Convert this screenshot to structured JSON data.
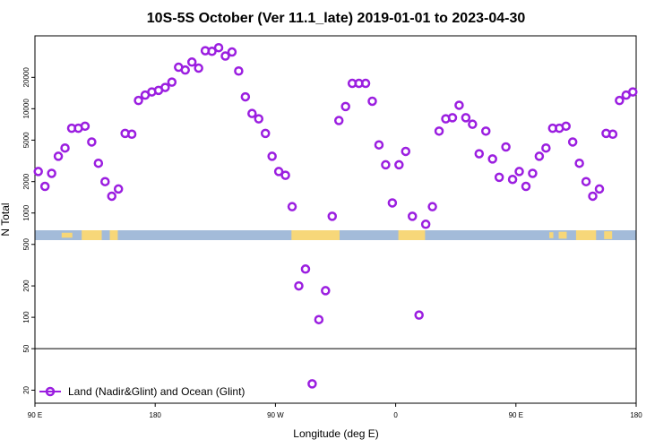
{
  "chart_data": {
    "type": "scatter",
    "title": "10S-5S October (Ver 11.1_late)   2019-01-01 to 2023-04-30",
    "xlabel": "Longitude (deg E)",
    "ylabel": "N Total",
    "x_scale": "longitude, 90 E to 180 via dateline, wrapping once",
    "y_scale": "log",
    "ylim": [
      15,
      50000
    ],
    "x_ticks": [
      {
        "lon": 90,
        "label": "90 E"
      },
      {
        "lon": 180,
        "label": "180"
      },
      {
        "lon": 270,
        "label": "90 W"
      },
      {
        "lon": 360,
        "label": "0"
      },
      {
        "lon": 450,
        "label": "90 E"
      },
      {
        "lon": 540,
        "label": "180"
      }
    ],
    "y_ticks": [
      20,
      50,
      100,
      200,
      500,
      1000,
      2000,
      5000,
      10000,
      20000
    ],
    "reference_line_y": 50,
    "background_band": {
      "description": "land/ocean map strip",
      "ocean_color": "#a3bbd9",
      "land_color": "#f7d779"
    },
    "legend": {
      "position": "bottom-left",
      "label": "Land (Nadir&Glint) and Ocean (Glint)"
    },
    "series": [
      {
        "name": "Land (Nadir&Glint) and Ocean (Glint)",
        "color": "#9b1ee0",
        "points": [
          [
            92.5,
            2500
          ],
          [
            97.5,
            1800
          ],
          [
            102.5,
            2400
          ],
          [
            107.5,
            3500
          ],
          [
            112.5,
            4200
          ],
          [
            117.5,
            6500
          ],
          [
            122.5,
            6500
          ],
          [
            127.5,
            6800
          ],
          [
            132.5,
            4800
          ],
          [
            137.5,
            3000
          ],
          [
            142.5,
            2000
          ],
          [
            147.5,
            1450
          ],
          [
            152.5,
            1700
          ],
          [
            157.5,
            5800
          ],
          [
            162.5,
            5700
          ],
          [
            167.5,
            12000
          ],
          [
            172.5,
            13500
          ],
          [
            177.5,
            14500
          ],
          [
            182.5,
            15000
          ],
          [
            187.5,
            16000
          ],
          [
            192.5,
            18000
          ],
          [
            197.5,
            25000
          ],
          [
            202.5,
            23500
          ],
          [
            207.5,
            28000
          ],
          [
            212.5,
            24500
          ],
          [
            217.5,
            36000
          ],
          [
            222.5,
            35500
          ],
          [
            227.5,
            38500
          ],
          [
            232.5,
            32000
          ],
          [
            237.5,
            35000
          ],
          [
            242.5,
            23000
          ],
          [
            247.5,
            13000
          ],
          [
            252.5,
            9000
          ],
          [
            257.5,
            8000
          ],
          [
            262.5,
            5800
          ],
          [
            267.5,
            3500
          ],
          [
            272.5,
            2500
          ],
          [
            277.5,
            2300
          ],
          [
            282.5,
            1150
          ],
          [
            287.5,
            200
          ],
          [
            292.5,
            290
          ],
          [
            297.5,
            23
          ],
          [
            302.5,
            95
          ],
          [
            307.5,
            180
          ],
          [
            312.5,
            930
          ],
          [
            317.5,
            7700
          ],
          [
            322.5,
            10500
          ],
          [
            327.5,
            17500
          ],
          [
            332.5,
            17500
          ],
          [
            337.5,
            17500
          ],
          [
            342.5,
            11800
          ],
          [
            347.5,
            4500
          ],
          [
            352.5,
            2900
          ],
          [
            357.5,
            1250
          ],
          [
            362.5,
            2900
          ],
          [
            367.5,
            3900
          ],
          [
            372.5,
            930
          ],
          [
            377.5,
            105
          ],
          [
            382.5,
            780
          ],
          [
            387.5,
            1150
          ],
          [
            392.5,
            6100
          ],
          [
            397.5,
            8000
          ],
          [
            402.5,
            8200
          ],
          [
            407.5,
            10800
          ],
          [
            412.5,
            8200
          ],
          [
            417.5,
            7100
          ],
          [
            422.5,
            3700
          ],
          [
            427.5,
            6100
          ],
          [
            432.5,
            3300
          ],
          [
            437.5,
            2200
          ],
          [
            442.5,
            4300
          ],
          [
            447.5,
            2100
          ],
          [
            452.5,
            2500
          ],
          [
            457.5,
            1800
          ],
          [
            462.5,
            2400
          ],
          [
            467.5,
            3500
          ],
          [
            472.5,
            4200
          ],
          [
            477.5,
            6500
          ],
          [
            482.5,
            6500
          ],
          [
            487.5,
            6800
          ],
          [
            492.5,
            4800
          ],
          [
            497.5,
            3000
          ],
          [
            502.5,
            2000
          ],
          [
            507.5,
            1450
          ],
          [
            512.5,
            1700
          ],
          [
            517.5,
            5800
          ],
          [
            522.5,
            5700
          ],
          [
            527.5,
            12000
          ],
          [
            532.5,
            13500
          ],
          [
            537.5,
            14500
          ]
        ]
      }
    ]
  }
}
